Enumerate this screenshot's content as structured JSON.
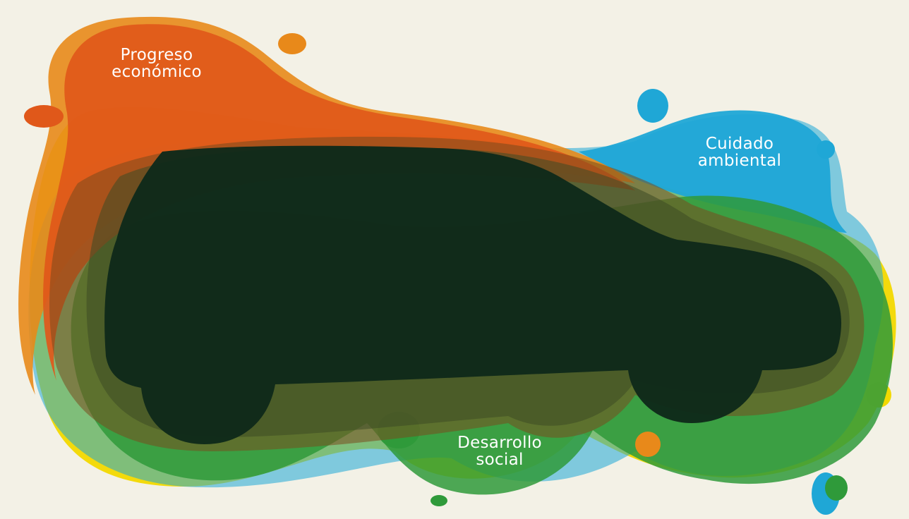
{
  "colors": {
    "background": "#f3f1e6",
    "economic": "#e0581a",
    "economic_light": "#e8891a",
    "environmental": "#1fa7d6",
    "social": "#2f9a3a",
    "yellow": "#f2d800",
    "car": "#0f2a1a"
  },
  "labels": {
    "economic": {
      "line1": "Progreso",
      "line2": "económico"
    },
    "environmental": {
      "line1": "Cuidado",
      "line2": "ambiental"
    },
    "social": {
      "line1": "Desarrollo",
      "line2": "social"
    }
  },
  "icons": {
    "car": "car-silhouette-icon"
  }
}
